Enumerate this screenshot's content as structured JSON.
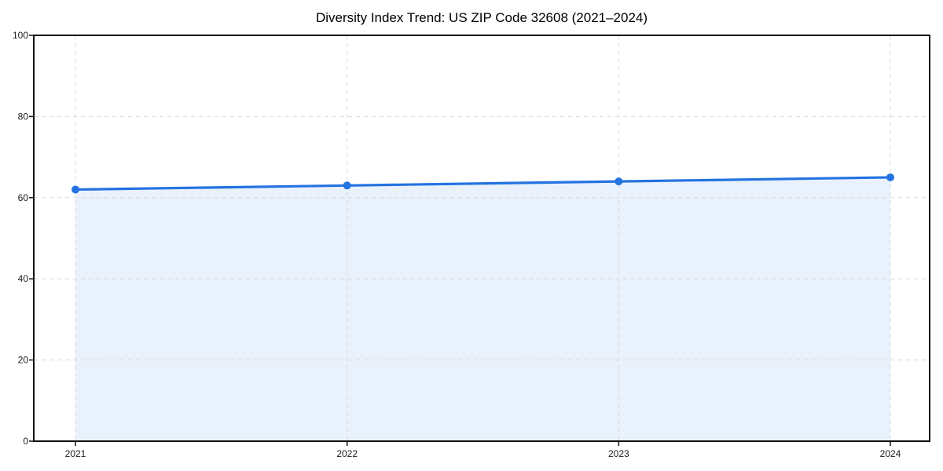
{
  "chart_data": {
    "type": "area",
    "title": "Diversity Index Trend: US ZIP Code 32608 (2021–2024)",
    "categories": [
      "2021",
      "2022",
      "2023",
      "2024"
    ],
    "series": [
      {
        "name": "Diversity Index",
        "values": [
          62,
          63,
          64,
          65
        ]
      }
    ],
    "xlabel": "",
    "ylabel": "",
    "ylim": [
      0,
      100
    ],
    "yticks": [
      0,
      20,
      40,
      60,
      80,
      100
    ],
    "grid": "dashed-both-axes",
    "legend_position": "none",
    "marker_style": "circle",
    "line_width": 3.2,
    "marker_radius": 5,
    "colors": {
      "line": "#2373e1",
      "marker": "#2373e1",
      "fill": "#2373e1",
      "fill_opacity": 0.1,
      "grid": "#d9d9d9",
      "axis": "#111111",
      "text": "#1a1a1a"
    }
  }
}
